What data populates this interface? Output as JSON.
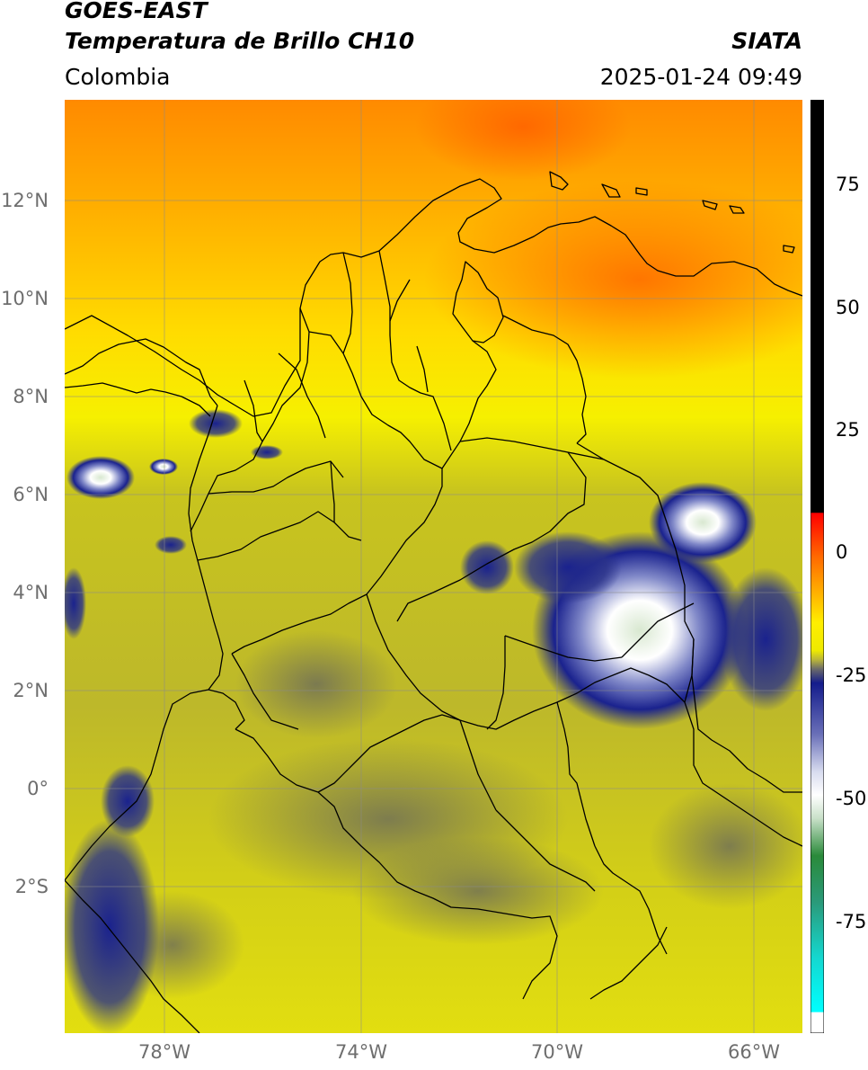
{
  "header": {
    "satellite": "GOES-EAST",
    "product": "Temperatura de Brillo CH10",
    "region": "Colombia",
    "source": "SIATA",
    "datetime": "2025-01-24 09:49"
  },
  "map": {
    "lat_labels": [
      "12°N",
      "10°N",
      "8°N",
      "6°N",
      "4°N",
      "2°N",
      "0°",
      "2°S"
    ],
    "lon_labels": [
      "78°W",
      "74°W",
      "70°W",
      "66°W"
    ]
  },
  "colorbar": {
    "labels": [
      "75",
      "50",
      "25",
      "0",
      "-25",
      "-50",
      "-75"
    ],
    "colors": {
      "max": "#000000",
      "warm": "#e8200c",
      "orange": "#ff9a00",
      "yellow": "#f8f200",
      "olive": "#c8c020",
      "gray": "#6a6a6a",
      "blue": "#141c8c",
      "white": "#ffffff",
      "green": "#2a8a3a",
      "cyan": "#14e8e8"
    }
  }
}
